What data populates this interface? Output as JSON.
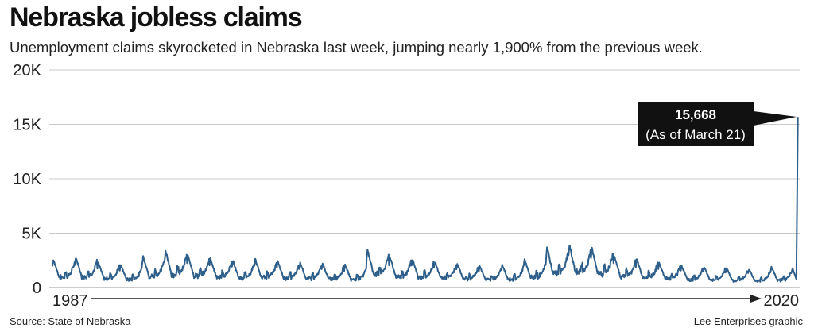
{
  "title": "Nebraska jobless claims",
  "subtitle": "Unemployment claims skyrocketed in Nebraska last week, jumping nearly 1,900% from the previous week.",
  "source": "Source: State of Nebraska",
  "credit": "Lee Enterprises graphic",
  "colors": {
    "line": "#2e5f8a",
    "callout_bg": "#111111",
    "grid": "#c8c8c8",
    "text": "#222222"
  },
  "chart_data": {
    "type": "line",
    "title": "Nebraska jobless claims",
    "ylim": [
      0,
      20000
    ],
    "yticks": [
      0,
      5000,
      10000,
      15000,
      20000
    ],
    "ytick_labels": [
      "0",
      "5K",
      "10K",
      "15K",
      "20K"
    ],
    "xlim": [
      1987,
      2020.3
    ],
    "x_axis_labels": [
      "1987",
      "2020"
    ],
    "grid": "horizontal",
    "series": [
      {
        "values_description": "weekly initial unemployment claims",
        "yearly_peaks": [
          [
            1987,
            2600
          ],
          [
            1988,
            2800
          ],
          [
            1989,
            2300
          ],
          [
            1990,
            2100
          ],
          [
            1991,
            2900
          ],
          [
            1992,
            3400
          ],
          [
            1993,
            3000
          ],
          [
            1994,
            2700
          ],
          [
            1995,
            2500
          ],
          [
            1996,
            2600
          ],
          [
            1997,
            2400
          ],
          [
            1998,
            2300
          ],
          [
            1999,
            2200
          ],
          [
            2000,
            2100
          ],
          [
            2001,
            3500
          ],
          [
            2002,
            2800
          ],
          [
            2003,
            2600
          ],
          [
            2004,
            2400
          ],
          [
            2005,
            2200
          ],
          [
            2006,
            2000
          ],
          [
            2007,
            2100
          ],
          [
            2008,
            2600
          ],
          [
            2009,
            3700
          ],
          [
            2010,
            3900
          ],
          [
            2011,
            3600
          ],
          [
            2012,
            2900
          ],
          [
            2013,
            2600
          ],
          [
            2014,
            2300
          ],
          [
            2015,
            2000
          ],
          [
            2016,
            1900
          ],
          [
            2017,
            1800
          ],
          [
            2018,
            1700
          ],
          [
            2019,
            1900
          ]
        ],
        "last_points": [
          [
            2020.15,
            760
          ],
          [
            2020.22,
            15668
          ]
        ]
      }
    ],
    "annotation": {
      "value": "15,668",
      "note": "(As of March 21)"
    }
  }
}
